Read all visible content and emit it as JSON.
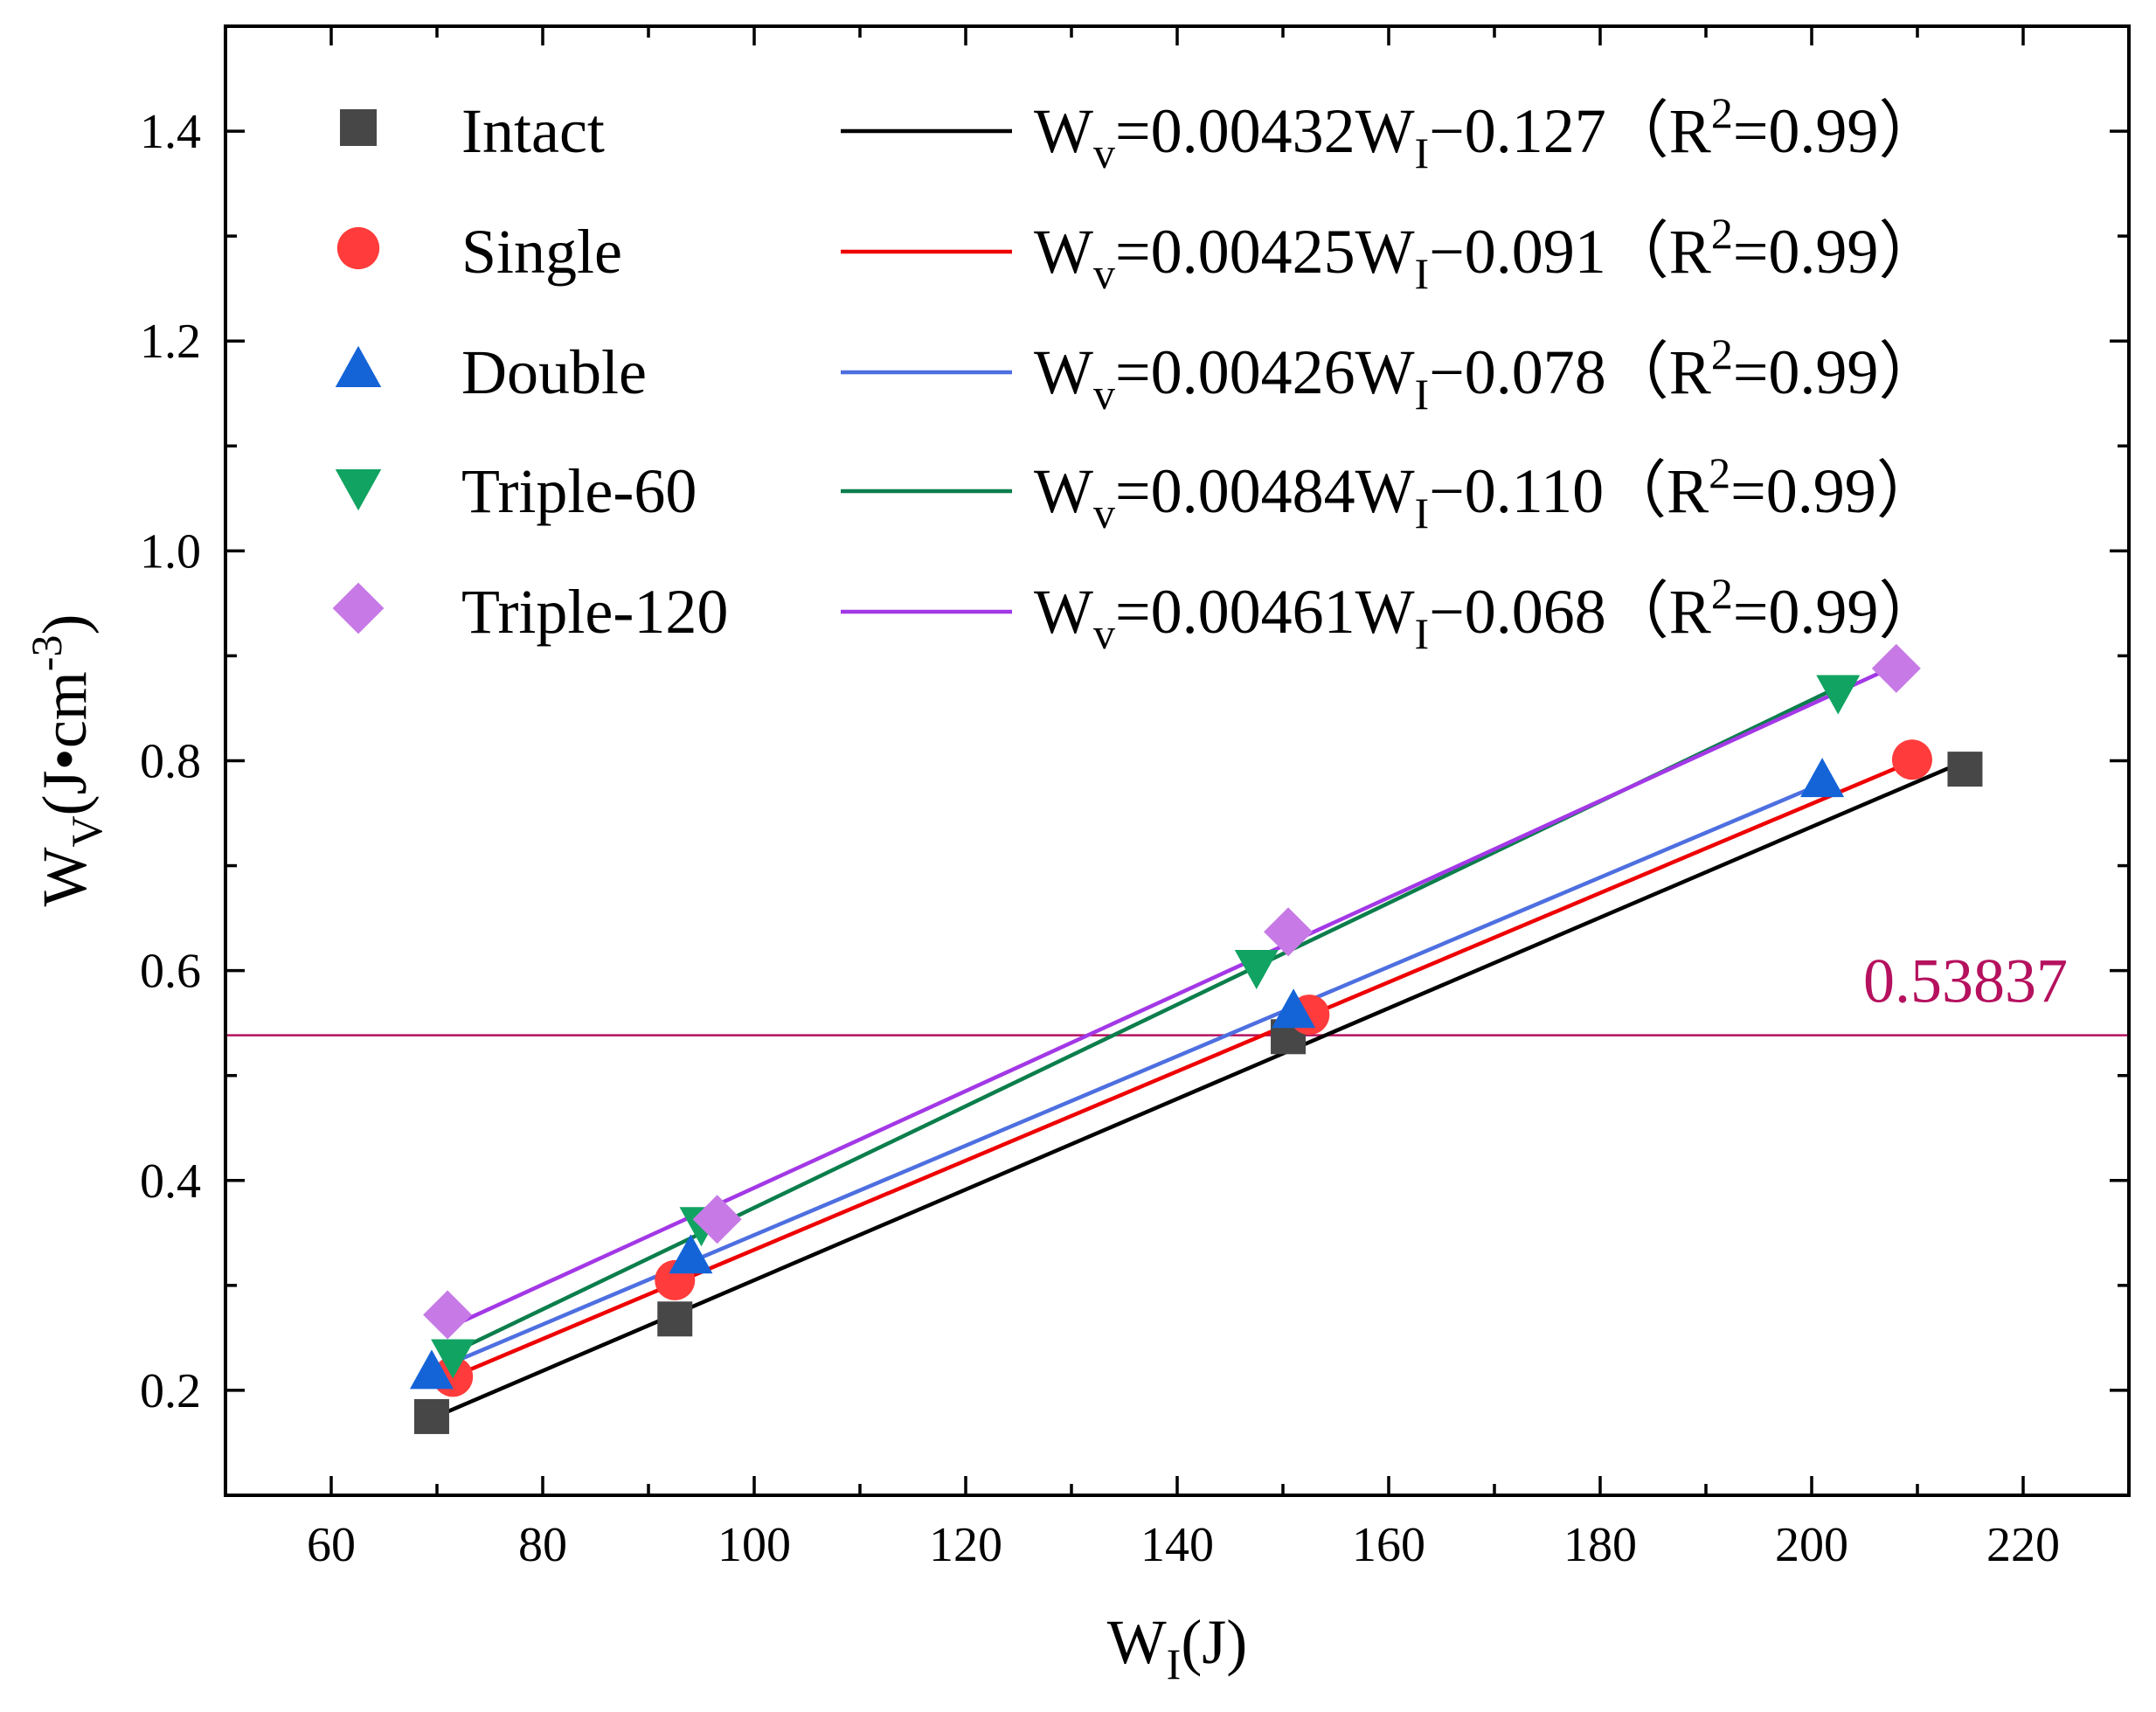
{
  "chart_data": {
    "type": "scatter",
    "xlabel_main": "W",
    "xlabel_sub": "I",
    "xlabel_tail": "(J)",
    "ylabel_main": "W",
    "ylabel_sub": "V",
    "ylabel_tail": "(J•cm",
    "ylabel_sup": "-3",
    "ylabel_close": ")",
    "xlim": [
      50,
      230
    ],
    "ylim": [
      0.1,
      1.5
    ],
    "x_ticks": [
      60,
      80,
      100,
      120,
      140,
      160,
      180,
      200,
      220
    ],
    "y_ticks": [
      0.2,
      0.4,
      0.6,
      0.8,
      1.0,
      1.2,
      1.4
    ],
    "x_tick_labels": [
      "60",
      "80",
      "100",
      "120",
      "140",
      "160",
      "180",
      "200",
      "220"
    ],
    "y_tick_labels": [
      "0.2",
      "0.4",
      "0.6",
      "0.8",
      "1.0",
      "1.2",
      "1.4"
    ],
    "reference_line": {
      "y": 0.53837,
      "label": "0.53837",
      "color": "#b5115e"
    },
    "series": [
      {
        "name": "Intact",
        "marker": "square",
        "color": "#474747",
        "line_color": "#000000",
        "x": [
          69.5,
          92.5,
          150.5,
          214.5
        ],
        "y": [
          0.175,
          0.268,
          0.537,
          0.792
        ],
        "fit": {
          "slope": 0.00432,
          "intercept": -0.127,
          "x_range": [
            69.5,
            214.5
          ]
        },
        "eq": {
          "coef": "0.00432",
          "const": "0.127",
          "r2": "0.99"
        }
      },
      {
        "name": "Single",
        "marker": "circle",
        "color": "#ff3b3b",
        "line_color": "#ee0000",
        "x": [
          71.5,
          92.5,
          152.5,
          209.5
        ],
        "y": [
          0.213,
          0.305,
          0.558,
          0.801
        ],
        "fit": {
          "slope": 0.00425,
          "intercept": -0.091,
          "x_range": [
            71.5,
            209.5
          ]
        },
        "eq": {
          "coef": "0.00425",
          "const": "0.091",
          "r2": "0.99"
        }
      },
      {
        "name": "Double",
        "marker": "triangle-up",
        "color": "#1464d8",
        "line_color": "#4e6fe0",
        "x": [
          69.5,
          94,
          151,
          201
        ],
        "y": [
          0.218,
          0.328,
          0.562,
          0.782
        ],
        "fit": {
          "slope": 0.00426,
          "intercept": -0.078,
          "x_range": [
            69.5,
            201
          ]
        },
        "eq": {
          "coef": "0.00426",
          "const": "0.078",
          "r2": "0.99"
        }
      },
      {
        "name": "Triple-60",
        "marker": "triangle-down",
        "color": "#11a362",
        "line_color": "#0b7e4c",
        "x": [
          71.5,
          95,
          147.5,
          202.5
        ],
        "y": [
          0.232,
          0.358,
          0.603,
          0.865
        ],
        "fit": {
          "slope": 0.00484,
          "intercept": -0.11,
          "x_range": [
            71.5,
            202.5
          ]
        },
        "eq": {
          "coef": "0.00484",
          "const": "0.110",
          "r2": "0.99"
        }
      },
      {
        "name": "Triple-120",
        "marker": "diamond",
        "color": "#c77ae6",
        "line_color": "#a338e6",
        "x": [
          71,
          96.5,
          150.5,
          208
        ],
        "y": [
          0.272,
          0.363,
          0.637,
          0.888
        ],
        "fit": {
          "slope": 0.00461,
          "intercept": -0.068,
          "x_range": [
            71,
            208
          ]
        },
        "eq": {
          "coef": "0.00461",
          "const": "0.068",
          "r2": "0.99"
        }
      }
    ]
  }
}
